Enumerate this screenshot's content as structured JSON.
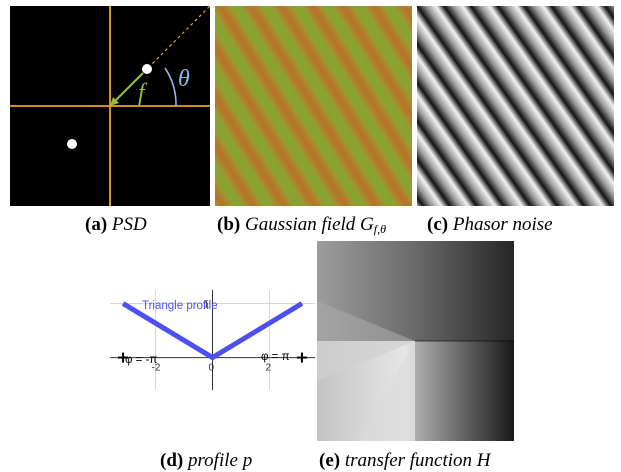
{
  "figure": {
    "panels": {
      "a": {
        "label": "(a)",
        "caption": "PSD",
        "symbols": {
          "f": "f",
          "theta": "θ"
        },
        "colors": {
          "axes": "#f2a31b",
          "dot": "#ffffff",
          "f_arrow": "#8fbf3f",
          "dashed": "#f2a31b",
          "theta_arc": "#8ab8e6"
        }
      },
      "b": {
        "label": "(b)",
        "caption": "Gaussian field",
        "caption_symbol": "G",
        "caption_subscript": "f,θ",
        "colors": {
          "red": "#c83a1a",
          "green": "#5ab428",
          "yellow": "#b4a53a"
        }
      },
      "c": {
        "label": "(c)",
        "caption": "Phasor noise"
      },
      "d": {
        "label": "(d)",
        "caption": "profile",
        "caption_symbol": "p",
        "plot_title": "Triangle profile",
        "left_annotation": "φ = -π",
        "right_annotation": "φ = π",
        "colors": {
          "curve": "#4d4ff0"
        }
      },
      "e": {
        "label": "(e)",
        "caption": "transfer function",
        "caption_symbol": "H"
      }
    }
  },
  "chart_data": {
    "type": "line",
    "title": "Triangle profile",
    "xlabel": "",
    "ylabel": "",
    "xlim": [
      -3.6,
      3.6
    ],
    "ylim": [
      -0.6,
      1.25
    ],
    "x_ticks": [
      -2,
      0,
      2
    ],
    "x_tick_labels": [
      "-2",
      "0",
      "2"
    ],
    "y_ticks": [
      1
    ],
    "y_tick_labels": [
      "1"
    ],
    "grid": true,
    "x": [
      -3.14159,
      0,
      3.14159
    ],
    "series": [
      {
        "values": [
          1,
          0,
          1
        ]
      }
    ],
    "end_markers": [
      -3.14159,
      3.14159
    ]
  }
}
